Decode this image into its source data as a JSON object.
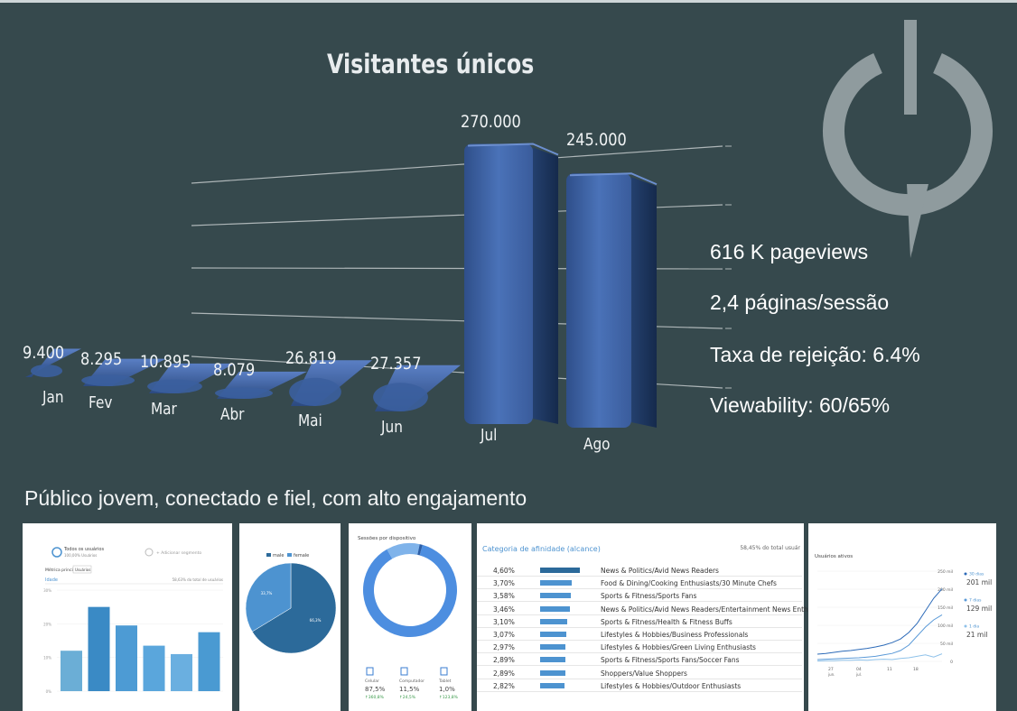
{
  "header": {
    "title": "Visitantes únicos",
    "subtitle": "Público jovem, conectado e fiel, com alto engajamento"
  },
  "stats": [
    {
      "text": "616 K pageviews"
    },
    {
      "text": "2,4 páginas/sessão"
    },
    {
      "text": "Taxa de rejeição: 6.4%"
    },
    {
      "text": "Viewability: 60/65%"
    }
  ],
  "colors": {
    "background": "#36494d",
    "bar": "#3b5f9f",
    "power_icon": "#8f9b9e",
    "accent_blue": "#4d93d0",
    "dark_blue": "#2c6a9a"
  },
  "logo": {
    "icon": "power-speech-bubble-icon"
  },
  "chart_data": [
    {
      "type": "bar",
      "title": "Visitantes únicos",
      "categories": [
        "Jan",
        "Fev",
        "Mar",
        "Abr",
        "Mai",
        "Jun",
        "Jul",
        "Ago"
      ],
      "values": [
        9400,
        8295,
        10895,
        8079,
        26819,
        27357,
        270000,
        245000
      ],
      "value_labels": [
        "9.400",
        "8.295",
        "10.895",
        "8.079",
        "26.819",
        "27.357",
        "270.000",
        "245.000"
      ],
      "ylim": [
        0,
        300000
      ],
      "grid": true,
      "style": "3d"
    },
    {
      "type": "bar",
      "title": "Idade",
      "series_label": "Todos os usuários",
      "series_sublabel": "100,00% Usuários",
      "segment_label": "+ Adicionar segmento",
      "metric_label": "Métrica principal",
      "metric_value": "Usuários",
      "total_label": "58,63% do total de usuários",
      "yticks": [
        "30%",
        "20%",
        "10%",
        "0%"
      ],
      "values": [
        12,
        25,
        19.5,
        13.5,
        11,
        17.5
      ],
      "ylim": [
        0,
        30
      ]
    },
    {
      "type": "pie",
      "legend": [
        "male",
        "female"
      ],
      "values": [
        66.3,
        33.7
      ],
      "labels": [
        "66,3%",
        "33,7%"
      ],
      "colors": [
        "#2c6a9a",
        "#4d93d0"
      ]
    },
    {
      "type": "pie",
      "title": "Sessões por dispositivo",
      "style": "donut",
      "devices": [
        {
          "name": "Celular",
          "value": 87.5,
          "pct": "87,5%",
          "change": "↑360,8%"
        },
        {
          "name": "Computador",
          "value": 11.5,
          "pct": "11,5%",
          "change": "↑24,5%"
        },
        {
          "name": "Tablet",
          "value": 1.0,
          "pct": "1,0%",
          "change": "↑123,8%"
        }
      ]
    },
    {
      "type": "table",
      "title": "Categoria de afinidade (alcance)",
      "total_label": "58,45% do total usuár",
      "rows": [
        {
          "pct": "4,60%",
          "value": 4.6,
          "name": "News & Politics/Avid News Readers"
        },
        {
          "pct": "3,70%",
          "value": 3.7,
          "name": "Food & Dining/Cooking Enthusiasts/30 Minute Chefs"
        },
        {
          "pct": "3,58%",
          "value": 3.58,
          "name": "Sports & Fitness/Sports Fans"
        },
        {
          "pct": "3,46%",
          "value": 3.46,
          "name": "News & Politics/Avid News Readers/Entertainment News Enthusiasts"
        },
        {
          "pct": "3,10%",
          "value": 3.1,
          "name": "Sports & Fitness/Health & Fitness Buffs"
        },
        {
          "pct": "3,07%",
          "value": 3.07,
          "name": "Lifestyles & Hobbies/Business Professionals"
        },
        {
          "pct": "2,97%",
          "value": 2.97,
          "name": "Lifestyles & Hobbies/Green Living Enthusiasts"
        },
        {
          "pct": "2,89%",
          "value": 2.89,
          "name": "Sports & Fitness/Sports Fans/Soccer Fans"
        },
        {
          "pct": "2,89%",
          "value": 2.89,
          "name": "Shoppers/Value Shoppers"
        },
        {
          "pct": "2,82%",
          "value": 2.82,
          "name": "Lifestyles & Hobbies/Outdoor Enthusiasts"
        }
      ]
    },
    {
      "type": "line",
      "title": "Usuários ativos",
      "yticks": [
        "250 mil",
        "200 mil",
        "150 mil",
        "100 mil",
        "50 mil",
        "0"
      ],
      "xticks": [
        "27 jun.",
        "04 jul.",
        "11",
        "18"
      ],
      "ylim": [
        0,
        250
      ],
      "series": [
        {
          "name": "30 dias",
          "value_label": "201 mil",
          "values": [
            20,
            22,
            25,
            28,
            30,
            33,
            36,
            40,
            45,
            52,
            62,
            80,
            105,
            140,
            175,
            201
          ]
        },
        {
          "name": "7 dias",
          "value_label": "129 mil",
          "values": [
            5,
            6,
            7,
            8,
            9,
            10,
            12,
            14,
            18,
            22,
            30,
            45,
            70,
            95,
            115,
            129
          ]
        },
        {
          "name": "1 dia",
          "value_label": "21 mil",
          "values": [
            1,
            2,
            2,
            3,
            3,
            4,
            3,
            5,
            6,
            5,
            8,
            10,
            14,
            18,
            12,
            21
          ]
        }
      ]
    }
  ]
}
